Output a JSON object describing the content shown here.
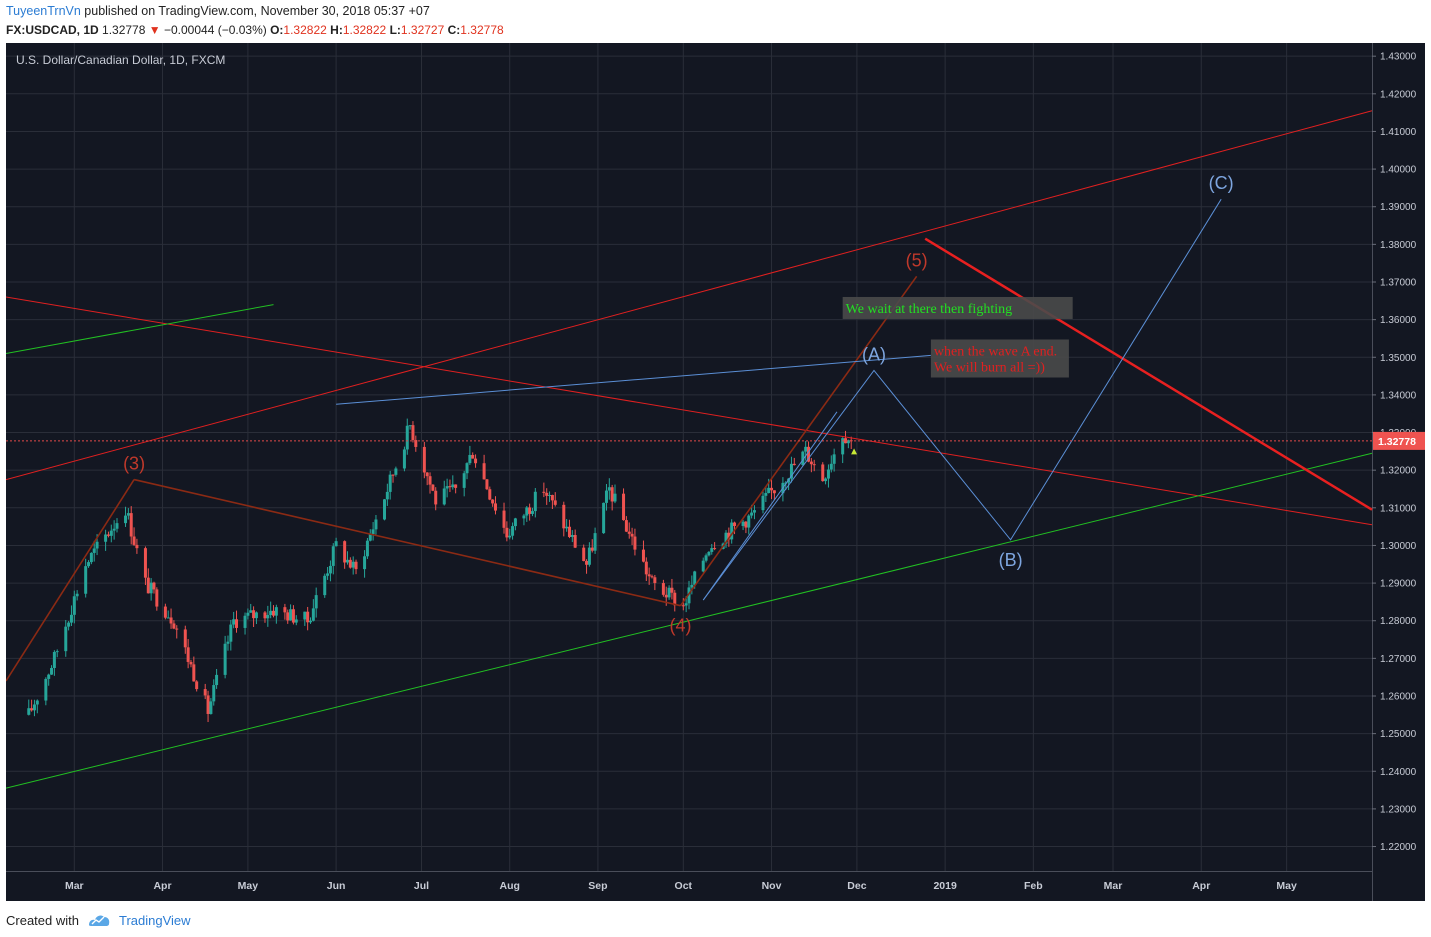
{
  "header": {
    "author": "TuyeenTrnVn",
    "published_text": "published on TradingView.com, November 30, 2018 05:37 +07",
    "symbol": "FX:USDCAD, 1D",
    "last_price": "1.32778",
    "change_arrow": "▼",
    "change": "−0.00044 (−0.03%)",
    "open_label": "O:",
    "open": "1.32822",
    "high_label": "H:",
    "high": "1.32822",
    "low_label": "L:",
    "low": "1.32727",
    "close_label": "C:",
    "close": "1.32778"
  },
  "footer": {
    "created_with": "Created with",
    "brand": "TradingView",
    "logo_icon": "tradingview-logo-icon"
  },
  "colors": {
    "background": "#131722",
    "grid": "#2a2e39",
    "up": "#26a69a",
    "down": "#ef5350",
    "red_line": "#e02020",
    "brown_line": "#8b2a14",
    "green_line": "#22c022",
    "blue_line": "#5b8fd6",
    "label_orange": "#c0392b",
    "label_blue": "#7ea6e0"
  },
  "chart_data": {
    "type": "candlestick",
    "title": "U.S. Dollar/Canadian Dollar, 1D, FXCM",
    "y_axis": {
      "ticks": [
        "1.43000",
        "1.42000",
        "1.41000",
        "1.40000",
        "1.39000",
        "1.38000",
        "1.37000",
        "1.36000",
        "1.35000",
        "1.34000",
        "1.33000",
        "1.32000",
        "1.31000",
        "1.30000",
        "1.29000",
        "1.28000",
        "1.27000",
        "1.26000",
        "1.25000",
        "1.24000",
        "1.23000",
        "1.22000"
      ],
      "current_price_label": "1.32778",
      "ylim": [
        1.2135,
        1.4335
      ]
    },
    "x_axis": {
      "ticks": [
        "Mar",
        "Apr",
        "May",
        "Jun",
        "Jul",
        "Aug",
        "Sep",
        "Oct",
        "Nov",
        "Dec",
        "2019",
        "Feb",
        "Mar",
        "Apr",
        "May"
      ]
    },
    "price_anchors": [
      {
        "date": "2018-02-13",
        "price": 1.255
      },
      {
        "date": "2018-02-22",
        "price": 1.27
      },
      {
        "date": "2018-03-05",
        "price": 1.295
      },
      {
        "date": "2018-03-19",
        "price": 1.31
      },
      {
        "date": "2018-03-26",
        "price": 1.29
      },
      {
        "date": "2018-04-05",
        "price": 1.28
      },
      {
        "date": "2018-04-17",
        "price": 1.256
      },
      {
        "date": "2018-04-26",
        "price": 1.28
      },
      {
        "date": "2018-05-10",
        "price": 1.283
      },
      {
        "date": "2018-05-22",
        "price": 1.28
      },
      {
        "date": "2018-06-01",
        "price": 1.3
      },
      {
        "date": "2018-06-08",
        "price": 1.293
      },
      {
        "date": "2018-06-19",
        "price": 1.315
      },
      {
        "date": "2018-06-27",
        "price": 1.332
      },
      {
        "date": "2018-07-06",
        "price": 1.312
      },
      {
        "date": "2018-07-13",
        "price": 1.315
      },
      {
        "date": "2018-07-19",
        "price": 1.325
      },
      {
        "date": "2018-07-31",
        "price": 1.303
      },
      {
        "date": "2018-08-13",
        "price": 1.315
      },
      {
        "date": "2018-08-28",
        "price": 1.295
      },
      {
        "date": "2018-09-05",
        "price": 1.315
      },
      {
        "date": "2018-09-20",
        "price": 1.29
      },
      {
        "date": "2018-10-01",
        "price": 1.284
      },
      {
        "date": "2018-10-10",
        "price": 1.3
      },
      {
        "date": "2018-10-25",
        "price": 1.308
      },
      {
        "date": "2018-11-13",
        "price": 1.325
      },
      {
        "date": "2018-11-19",
        "price": 1.318
      },
      {
        "date": "2018-11-26",
        "price": 1.33
      },
      {
        "date": "2018-11-29",
        "price": 1.3278
      }
    ],
    "trendlines": [
      {
        "name": "upper-red-channel",
        "color": "#e02020",
        "from": {
          "date": "2018-02-05",
          "price": 1.3175
        },
        "to": {
          "date": "2019-05-31",
          "price": 1.4155
        }
      },
      {
        "name": "descending-red",
        "color": "#e02020",
        "from": {
          "date": "2018-02-05",
          "price": 1.366
        },
        "to": {
          "date": "2019-05-31",
          "price": 1.3055
        }
      },
      {
        "name": "green-upper-short",
        "color": "#22c022",
        "from": {
          "date": "2018-02-05",
          "price": 1.351
        },
        "to": {
          "date": "2018-05-10",
          "price": 1.364
        }
      },
      {
        "name": "green-lower-channel",
        "color": "#22c022",
        "from": {
          "date": "2018-02-05",
          "price": 1.2355
        },
        "to": {
          "date": "2019-05-31",
          "price": 1.3245
        }
      },
      {
        "name": "brown-3-to-4",
        "color": "#8b2a14",
        "from": {
          "date": "2018-03-22",
          "price": 1.3175
        },
        "to": {
          "date": "2018-09-30",
          "price": 1.284
        }
      },
      {
        "name": "brown-start-to-3",
        "color": "#8b2a14",
        "from": {
          "date": "2018-02-05",
          "price": 1.264
        },
        "to": {
          "date": "2018-03-22",
          "price": 1.3175
        }
      },
      {
        "name": "brown-4-to-5",
        "color": "#8b2a14",
        "from": {
          "date": "2018-09-30",
          "price": 1.284
        },
        "to": {
          "date": "2018-12-22",
          "price": 1.3715
        }
      },
      {
        "name": "blue-top",
        "color": "#5b8fd6",
        "from": {
          "date": "2018-06-01",
          "price": 1.3375
        },
        "to": {
          "date": "2018-12-27",
          "price": 1.3505
        }
      },
      {
        "name": "blue-channel",
        "color": "#5b8fd6",
        "from": {
          "date": "2018-10-08",
          "price": 1.2855
        },
        "to": {
          "date": "2018-11-24",
          "price": 1.3355
        }
      },
      {
        "name": "bold-red-descending",
        "color": "#e82020",
        "from": {
          "date": "2018-12-25",
          "price": 1.3815
        },
        "to": {
          "date": "2019-05-31",
          "price": 1.3095
        }
      }
    ],
    "wave_path": [
      {
        "date": "2018-10-08",
        "price": 1.2855,
        "label": ""
      },
      {
        "date": "2018-12-07",
        "price": 1.3465,
        "label": "(A)"
      },
      {
        "date": "2019-01-24",
        "price": 1.3015,
        "label": "(B)"
      },
      {
        "date": "2019-04-08",
        "price": 1.392,
        "label": "(C)"
      }
    ],
    "wave_labels": [
      {
        "text": "(3)",
        "date": "2018-03-22",
        "price": 1.3175,
        "color": "orange"
      },
      {
        "text": "(4)",
        "date": "2018-09-30",
        "price": 1.284,
        "color": "orange"
      },
      {
        "text": "(5)",
        "date": "2018-12-22",
        "price": 1.3715,
        "color": "orange"
      },
      {
        "text": "(A)",
        "date": "2018-12-07",
        "price": 1.3465,
        "color": "blue"
      },
      {
        "text": "(B)",
        "date": "2019-01-24",
        "price": 1.3015,
        "color": "blue"
      },
      {
        "text": "(C)",
        "date": "2019-04-08",
        "price": 1.392,
        "color": "blue"
      }
    ],
    "annotations": [
      {
        "lines": [
          "We wait at there then fighting"
        ],
        "color": "#22e022",
        "date": "2018-11-26",
        "price": 1.3623
      },
      {
        "lines": [
          "when the wave A end.",
          "We will burn all =))"
        ],
        "color": "#e02020",
        "date": "2018-12-27",
        "price": 1.351
      }
    ]
  }
}
